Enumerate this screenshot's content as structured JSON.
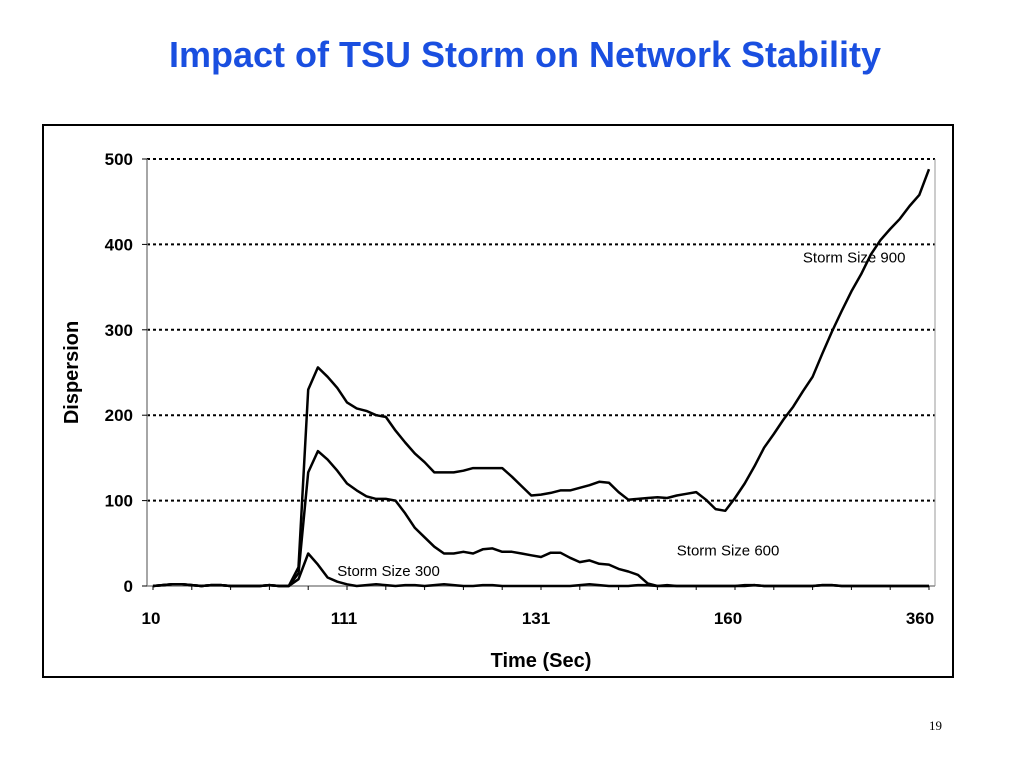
{
  "page": {
    "title": "Impact of TSU Storm on Network Stability",
    "slide_number": "19"
  },
  "chart_data": {
    "type": "line",
    "title": "",
    "xlabel": "Time (Sec)",
    "ylabel": "Dispersion",
    "ylim": [
      0,
      500
    ],
    "yticks": [
      "0",
      "100",
      "200",
      "300",
      "400",
      "500"
    ],
    "xtick_labels": [
      "10",
      "111",
      "131",
      "160",
      "360"
    ],
    "grid": "horizontal dotted",
    "legend": "inline labels",
    "x_points": 81,
    "series": [
      {
        "name": "Storm Size 300",
        "values": [
          0,
          1,
          2,
          2,
          1,
          0,
          1,
          1,
          0,
          0,
          0,
          0,
          1,
          0,
          0,
          8,
          38,
          25,
          10,
          5,
          2,
          0,
          1,
          2,
          1,
          0,
          1,
          1,
          0,
          1,
          2,
          1,
          0,
          0,
          1,
          1,
          0,
          0,
          0,
          0,
          0,
          0,
          0,
          0,
          1,
          2,
          1,
          0,
          0,
          0,
          1,
          1,
          0,
          0,
          0,
          0,
          0,
          0,
          0,
          0,
          0,
          1,
          1,
          0,
          0,
          0,
          0,
          0,
          0,
          1,
          1,
          0,
          0,
          0,
          0,
          0,
          0,
          0,
          0,
          0,
          0
        ]
      },
      {
        "name": "Storm Size 600",
        "values": [
          0,
          1,
          2,
          2,
          1,
          0,
          1,
          1,
          0,
          0,
          0,
          0,
          1,
          0,
          0,
          15,
          133,
          158,
          148,
          135,
          120,
          112,
          105,
          102,
          102,
          100,
          85,
          68,
          57,
          46,
          38,
          38,
          40,
          38,
          43,
          44,
          40,
          40,
          38,
          36,
          34,
          39,
          39,
          33,
          28,
          30,
          26,
          25,
          20,
          17,
          13,
          3,
          0,
          1,
          0,
          0,
          0,
          0,
          0,
          0,
          0,
          0,
          1,
          0,
          0,
          0,
          0,
          0,
          0,
          1,
          1,
          0,
          0,
          0,
          0,
          0,
          0,
          0,
          0,
          0,
          0
        ]
      },
      {
        "name": "Storm Size 900",
        "values": [
          0,
          1,
          2,
          2,
          1,
          0,
          1,
          1,
          0,
          0,
          0,
          0,
          1,
          0,
          0,
          22,
          230,
          256,
          245,
          232,
          215,
          208,
          205,
          200,
          198,
          182,
          168,
          155,
          145,
          133,
          133,
          133,
          135,
          138,
          138,
          138,
          138,
          128,
          117,
          106,
          107,
          109,
          112,
          112,
          115,
          118,
          122,
          121,
          110,
          101,
          102,
          103,
          104,
          103,
          106,
          108,
          110,
          101,
          90,
          88,
          103,
          120,
          140,
          162,
          178,
          195,
          210,
          228,
          245,
          272,
          298,
          322,
          345,
          365,
          388,
          405,
          418,
          430,
          445,
          458,
          488
        ]
      },
      {
        "name": "",
        "values": []
      }
    ],
    "annotations": [
      {
        "text": "Storm Size 900",
        "x_index": 67,
        "y": 379
      },
      {
        "text": "Storm Size 600",
        "x_index": 54,
        "y": 36
      },
      {
        "text": "Storm Size 300",
        "x_index": 19,
        "y": 12
      }
    ]
  }
}
